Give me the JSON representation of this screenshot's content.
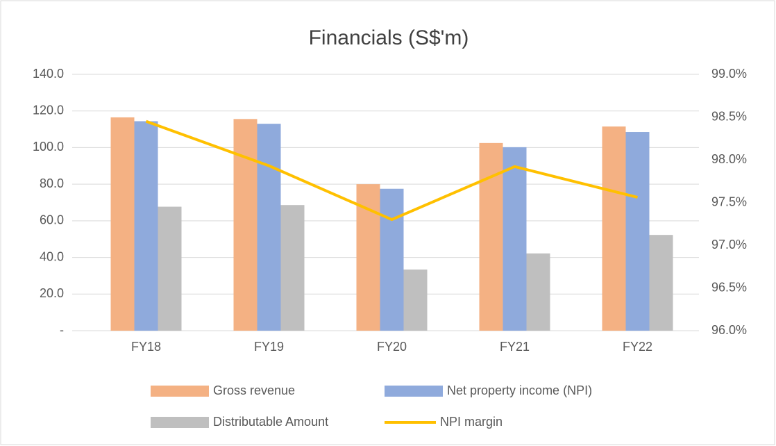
{
  "chart_data": {
    "type": "bar",
    "title": "Financials (S$'m)",
    "categories": [
      "FY18",
      "FY19",
      "FY20",
      "FY21",
      "FY22"
    ],
    "series": [
      {
        "name": "Gross revenue",
        "color": "#f4b183",
        "values": [
          116.5,
          115.6,
          80.0,
          102.5,
          111.5
        ]
      },
      {
        "name": "Net property income (NPI)",
        "color": "#8faadc",
        "values": [
          114.4,
          113.0,
          77.5,
          100.2,
          108.5
        ]
      },
      {
        "name": "Distributable Amount",
        "color": "#bfbfbf",
        "values": [
          67.7,
          68.6,
          33.4,
          42.2,
          52.3
        ]
      },
      {
        "name": "NPI margin",
        "color": "#ffc000",
        "type": "line",
        "axis": "y2",
        "values": [
          98.45,
          97.93,
          97.3,
          97.92,
          97.56
        ]
      }
    ],
    "ylim": [
      0,
      140
    ],
    "yticks": [
      {
        "value": 0,
        "label": "-"
      },
      {
        "value": 20,
        "label": "20.0"
      },
      {
        "value": 40,
        "label": "40.0"
      },
      {
        "value": 60,
        "label": "60.0"
      },
      {
        "value": 80,
        "label": "80.0"
      },
      {
        "value": 100,
        "label": "100.0"
      },
      {
        "value": 120,
        "label": "120.0"
      },
      {
        "value": 140,
        "label": "140.0"
      }
    ],
    "y2lim": [
      96,
      99
    ],
    "y2ticks": [
      {
        "value": 96,
        "label": "96.0%"
      },
      {
        "value": 96.5,
        "label": "96.5%"
      },
      {
        "value": 97,
        "label": "97.0%"
      },
      {
        "value": 97.5,
        "label": "97.5%"
      },
      {
        "value": 98,
        "label": "98.0%"
      },
      {
        "value": 98.5,
        "label": "98.5%"
      },
      {
        "value": 99,
        "label": "99.0%"
      }
    ],
    "grid": true,
    "legend": "bottom"
  }
}
